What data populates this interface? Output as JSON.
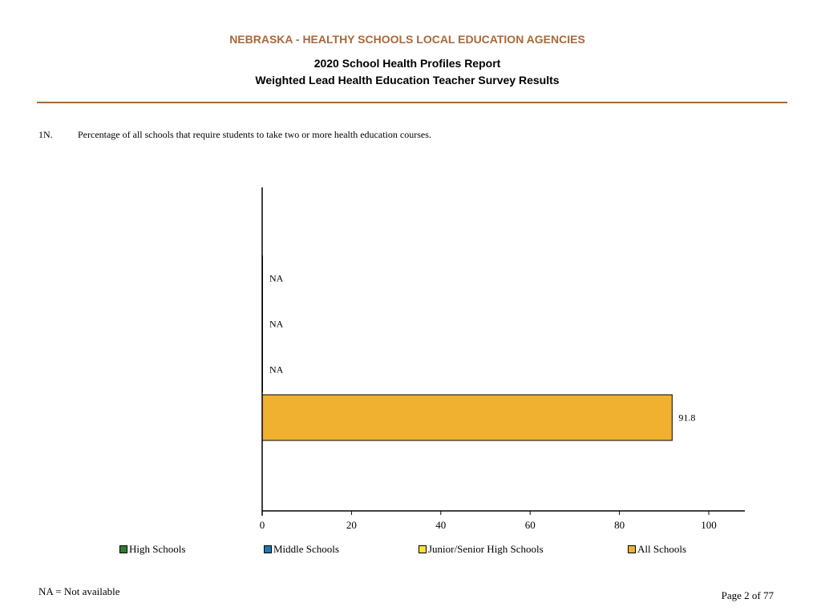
{
  "header": {
    "title": "NEBRASKA - HEALTHY SCHOOLS LOCAL EDUCATION AGENCIES",
    "report": "2020 School Health Profiles Report",
    "subtitle": "Weighted Lead Health Education Teacher Survey Results",
    "accent_color": "#a9683a"
  },
  "question": {
    "number": "1N.",
    "text": "Percentage of all schools that require students to take two or more health education courses."
  },
  "chart_data": {
    "type": "bar",
    "orientation": "horizontal",
    "categories": [
      "High Schools",
      "Middle Schools",
      "Junior/Senior High Schools",
      "All Schools"
    ],
    "values": [
      null,
      null,
      null,
      91.8
    ],
    "value_labels": [
      "NA",
      "NA",
      "NA",
      "91.8"
    ],
    "colors": [
      "#2e7d32",
      "#1f77b4",
      "#ffe135",
      "#f0b030"
    ],
    "xlim": [
      0,
      100
    ],
    "xticks": [
      0,
      20,
      40,
      60,
      80,
      100
    ],
    "xlabel": "",
    "ylabel": "",
    "grid": false,
    "legend_position": "bottom"
  },
  "legend": {
    "items": [
      {
        "label": "High Schools",
        "color": "#2e7d32"
      },
      {
        "label": "Middle Schools",
        "color": "#1f77b4"
      },
      {
        "label": "Junior/Senior High Schools",
        "color": "#ffe135"
      },
      {
        "label": "All Schools",
        "color": "#f0b030"
      }
    ]
  },
  "footer": {
    "note": "NA = Not available",
    "page": "Page 2 of 77"
  }
}
